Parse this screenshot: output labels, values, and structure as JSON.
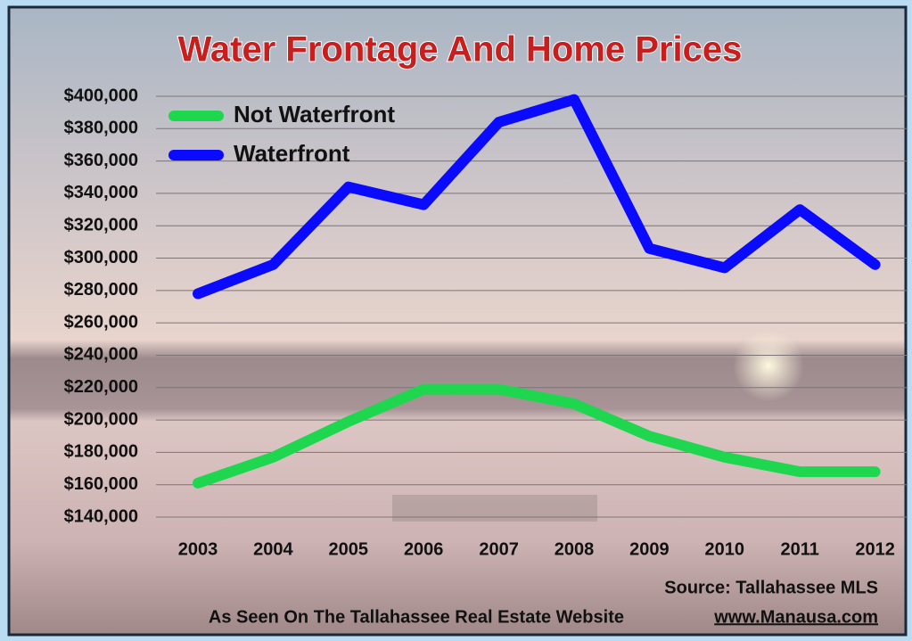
{
  "chart_data": {
    "type": "line",
    "title": "Water Frontage And Home Prices",
    "categories": [
      "2003",
      "2004",
      "2005",
      "2006",
      "2007",
      "2008",
      "2009",
      "2010",
      "2011",
      "2012"
    ],
    "series": [
      {
        "name": "Not Waterfront",
        "color": "#1fd64f",
        "values": [
          161000,
          177000,
          199000,
          219000,
          219000,
          210000,
          190000,
          177000,
          168000,
          168000
        ]
      },
      {
        "name": "Waterfront",
        "color": "#0a0aff",
        "values": [
          278000,
          296000,
          344000,
          333000,
          384000,
          398000,
          306000,
          294000,
          330000,
          296000
        ]
      }
    ],
    "ylim": [
      140000,
      400000
    ],
    "yticks": [
      {
        "value": 140000,
        "label": "$140,000"
      },
      {
        "value": 160000,
        "label": "$160,000"
      },
      {
        "value": 180000,
        "label": "$180,000"
      },
      {
        "value": 200000,
        "label": "$200,000"
      },
      {
        "value": 220000,
        "label": "$220,000"
      },
      {
        "value": 240000,
        "label": "$240,000"
      },
      {
        "value": 260000,
        "label": "$260,000"
      },
      {
        "value": 280000,
        "label": "$280,000"
      },
      {
        "value": 300000,
        "label": "$300,000"
      },
      {
        "value": 320000,
        "label": "$320,000"
      },
      {
        "value": 340000,
        "label": "$340,000"
      },
      {
        "value": 360000,
        "label": "$360,000"
      },
      {
        "value": 380000,
        "label": "$380,000"
      },
      {
        "value": 400000,
        "label": "$400,000"
      }
    ],
    "grid": true,
    "legend": "top-left",
    "source": "Source: Tallahassee MLS",
    "footer": "As Seen On The Tallahassee Real Estate Website",
    "link": "www.Manausa.com"
  }
}
